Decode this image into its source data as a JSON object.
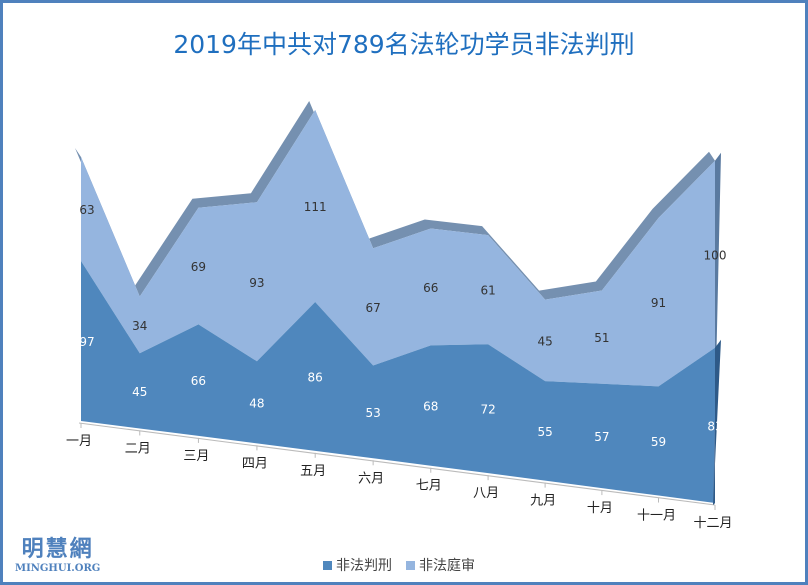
{
  "chart_data": {
    "type": "area",
    "stacked": true,
    "three_d": true,
    "title": "2019年中共对789名法轮功学员非法判刑",
    "categories": [
      "一月",
      "二月",
      "三月",
      "四月",
      "五月",
      "六月",
      "七月",
      "八月",
      "九月",
      "十月",
      "十一月",
      "十二月"
    ],
    "series": [
      {
        "name": "非法判刑",
        "color": "#4f87bd",
        "values": [
          97,
          45,
          66,
          48,
          86,
          53,
          68,
          72,
          55,
          57,
          59,
          83
        ]
      },
      {
        "name": "非法庭审",
        "color": "#95b5df",
        "values": [
          63,
          34,
          69,
          93,
          111,
          67,
          66,
          61,
          45,
          51,
          91,
          100
        ]
      }
    ],
    "legend": "bottom",
    "grid": false
  },
  "logo": {
    "cn": "明慧網",
    "en": "MINGHUI.ORG"
  }
}
